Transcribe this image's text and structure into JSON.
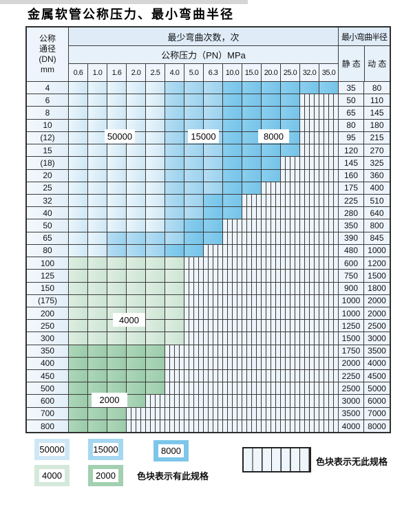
{
  "page": {
    "title": "金属软管公称压力、最小弯曲半径"
  },
  "table": {
    "header": {
      "dn_lines": [
        "公称",
        "通径",
        "(DN)",
        "mm"
      ],
      "bend_cycles": "最少弯曲次数，次",
      "pressure": "公称压力（PN）MPa",
      "radius": "最小弯曲半径",
      "static": "静 态",
      "dynamic": "动 态",
      "pressure_cols": [
        "0.6",
        "1.0",
        "1.6",
        "2.0",
        "2.5",
        "4.0",
        "5.0",
        "6.3",
        "10.0",
        "15.0",
        "20.0",
        "25.0",
        "32.0",
        "35.0"
      ]
    },
    "rows": [
      {
        "dn": "4",
        "pattern": "11111222333333",
        "static": "35",
        "dynamic": "80"
      },
      {
        "dn": "6",
        "pattern": "111112223333NN",
        "static": "50",
        "dynamic": "110"
      },
      {
        "dn": "8",
        "pattern": "111112223333NN",
        "static": "65",
        "dynamic": "145"
      },
      {
        "dn": "10",
        "pattern": "111112223333NN",
        "static": "80",
        "dynamic": "180"
      },
      {
        "dn": "(12)",
        "pattern": "111112223333NN",
        "static": "95",
        "dynamic": "215"
      },
      {
        "dn": "15",
        "pattern": "111112223333NN",
        "static": "120",
        "dynamic": "270"
      },
      {
        "dn": "(18)",
        "pattern": "11111222333NNN",
        "static": "145",
        "dynamic": "325"
      },
      {
        "dn": "20",
        "pattern": "11111222333NNN",
        "static": "160",
        "dynamic": "360"
      },
      {
        "dn": "25",
        "pattern": "1111122233NNNN",
        "static": "175",
        "dynamic": "400"
      },
      {
        "dn": "32",
        "pattern": "111112233NNNNN",
        "static": "225",
        "dynamic": "510"
      },
      {
        "dn": "40",
        "pattern": "111112233NNNNN",
        "static": "280",
        "dynamic": "640"
      },
      {
        "dn": "50",
        "pattern": "11111233NNNNNN",
        "static": "350",
        "dynamic": "800"
      },
      {
        "dn": "65",
        "pattern": "11222233NNNNNN",
        "static": "390",
        "dynamic": "845"
      },
      {
        "dn": "80",
        "pattern": "1122233NNNNNNN",
        "static": "480",
        "dynamic": "1000"
      },
      {
        "dn": "100",
        "pattern": "444444NNNNNNNN",
        "static": "600",
        "dynamic": "1200"
      },
      {
        "dn": "125",
        "pattern": "444444NNNNNNNN",
        "static": "750",
        "dynamic": "1500"
      },
      {
        "dn": "150",
        "pattern": "444444NNNNNNNN",
        "static": "900",
        "dynamic": "1800"
      },
      {
        "dn": "(175)",
        "pattern": "444444NNNNNNNN",
        "static": "1000",
        "dynamic": "2000"
      },
      {
        "dn": "200",
        "pattern": "444444NNNNNNNN",
        "static": "1000",
        "dynamic": "2000"
      },
      {
        "dn": "250",
        "pattern": "444444NNNNNNNN",
        "static": "1250",
        "dynamic": "2500"
      },
      {
        "dn": "300",
        "pattern": "444444NNNNNNNN",
        "static": "1500",
        "dynamic": "3000"
      },
      {
        "dn": "350",
        "pattern": "55555NNNNNNNNN",
        "static": "1750",
        "dynamic": "3500"
      },
      {
        "dn": "400",
        "pattern": "55555NNNNNNNNN",
        "static": "2000",
        "dynamic": "4000"
      },
      {
        "dn": "450",
        "pattern": "55555NNNNNNNNN",
        "static": "2250",
        "dynamic": "4500"
      },
      {
        "dn": "500",
        "pattern": "55555NNNNNNNNN",
        "static": "2500",
        "dynamic": "5000"
      },
      {
        "dn": "600",
        "pattern": "5555NNNNNNNNNN",
        "static": "3000",
        "dynamic": "6000"
      },
      {
        "dn": "700",
        "pattern": "555NNNNNNNNNNN",
        "static": "3500",
        "dynamic": "7000"
      },
      {
        "dn": "800",
        "pattern": "555NNNNNNNNNNN",
        "static": "4000",
        "dynamic": "8000"
      }
    ]
  },
  "overlays": [
    {
      "label": "50000"
    },
    {
      "label": "15000"
    },
    {
      "label": "8000"
    },
    {
      "label": "4000"
    },
    {
      "label": "2000"
    }
  ],
  "legend": {
    "items": [
      {
        "value": "50000",
        "color": "#cfe7f5"
      },
      {
        "value": "15000",
        "color": "#a5d7f0"
      },
      {
        "value": "8000",
        "color": "#7cc6ea"
      },
      {
        "value": "4000",
        "color": "#d4e9da"
      },
      {
        "value": "2000",
        "color": "#a2d0b0"
      }
    ],
    "available_note": "色块表示有此规格",
    "unavailable_note": "色块表示无此规格"
  },
  "colors": {
    "blue_50000": "#cfe7f5",
    "blue_15000": "#a5d7f0",
    "blue_8000": "#7cc6ea",
    "green_4000": "#d4e9da",
    "green_2000": "#a2d0b0",
    "grid": "#3a3a3a"
  }
}
